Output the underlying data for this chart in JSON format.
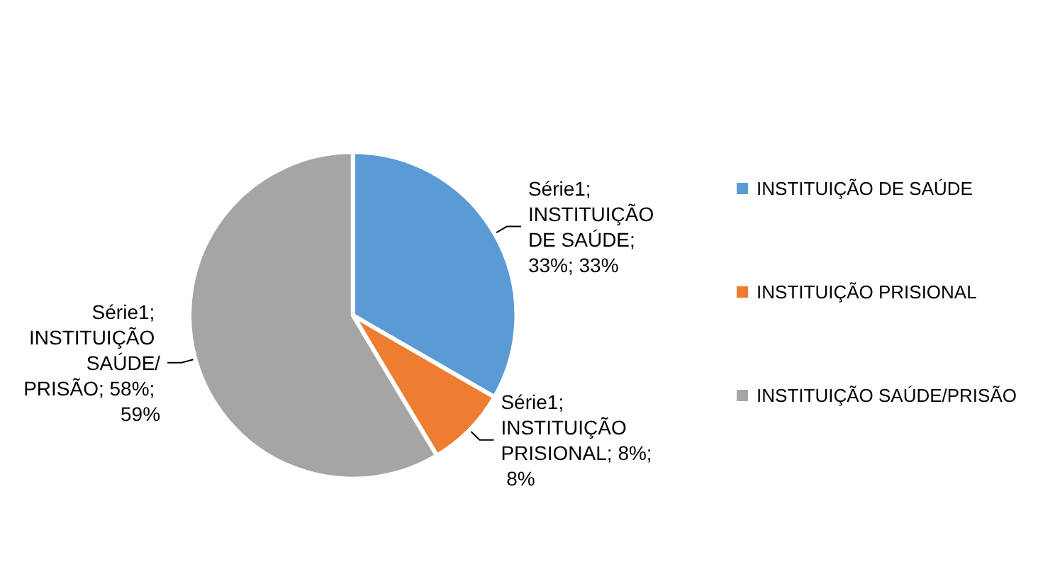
{
  "chart_data": {
    "type": "pie",
    "categories": [
      "INSTITUIÇÃO DE SAÚDE",
      "INSTITUIÇÃO PRISIONAL",
      "INSTITUIÇÃO SAÚDE/PRISÃO"
    ],
    "values": [
      33,
      8,
      58
    ],
    "colors": [
      "#5b9bd5",
      "#ed7d31",
      "#a5a5a5"
    ],
    "value_labels": [
      "Série1; INSTITUIÇÃO DE SAÚDE; 33%; 33%",
      "Série1; INSTITUIÇÃO PRISIONAL; 8%; 8%",
      "Série1; INSTITUIÇÃO SAÚDE/PRISÃO; 58%; 59%"
    ],
    "legend": "right"
  }
}
